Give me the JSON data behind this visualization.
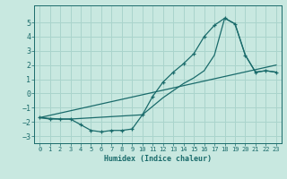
{
  "xlabel": "Humidex (Indice chaleur)",
  "background_color": "#c8e8e0",
  "grid_color": "#aad4cc",
  "line_color": "#1a6b6b",
  "xlim": [
    -0.5,
    23.5
  ],
  "ylim": [
    -3.5,
    6.2
  ],
  "yticks": [
    -3,
    -2,
    -1,
    0,
    1,
    2,
    3,
    4,
    5
  ],
  "xticks": [
    0,
    1,
    2,
    3,
    4,
    5,
    6,
    7,
    8,
    9,
    10,
    11,
    12,
    13,
    14,
    15,
    16,
    17,
    18,
    19,
    20,
    21,
    22,
    23
  ],
  "line1_x": [
    0,
    1,
    2,
    3,
    4,
    5,
    6,
    7,
    8,
    9,
    10,
    11,
    12,
    13,
    14,
    15,
    16,
    17,
    18,
    19,
    20,
    21,
    22,
    23
  ],
  "line1_y": [
    -1.7,
    -1.8,
    -1.8,
    -1.8,
    -2.2,
    -2.6,
    -2.7,
    -2.6,
    -2.6,
    -2.5,
    -1.5,
    -0.2,
    0.8,
    1.5,
    2.1,
    2.8,
    4.0,
    4.8,
    5.3,
    4.9,
    2.7,
    1.5,
    1.6,
    1.5
  ],
  "line2_x": [
    0,
    2,
    3,
    10,
    11,
    12,
    13,
    14,
    15,
    16,
    17,
    18,
    19,
    20,
    21,
    22,
    23
  ],
  "line2_y": [
    -1.7,
    -1.8,
    -1.8,
    -1.5,
    -0.9,
    -0.3,
    0.2,
    0.7,
    1.1,
    1.6,
    2.7,
    5.3,
    4.9,
    2.7,
    1.5,
    1.6,
    1.5
  ],
  "line3_x": [
    0,
    23
  ],
  "line3_y": [
    -1.7,
    2.0
  ]
}
